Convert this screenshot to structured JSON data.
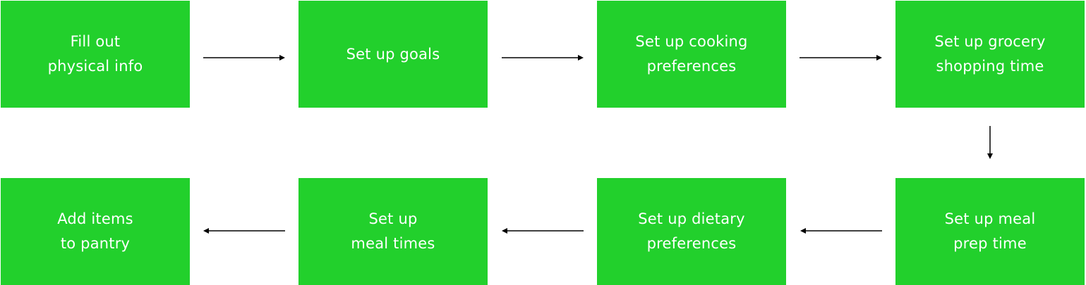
{
  "flow": {
    "steps": [
      {
        "label": "Fill out\nphysical info"
      },
      {
        "label": "Set up goals"
      },
      {
        "label": "Set up cooking\npreferences"
      },
      {
        "label": "Set up grocery\nshopping time"
      },
      {
        "label": "Set up meal\nprep time"
      },
      {
        "label": "Set up dietary\npreferences"
      },
      {
        "label": "Set up\nmeal times"
      },
      {
        "label": "Add items\nto pantry"
      }
    ]
  },
  "colors": {
    "box_fill": "#22d02c",
    "box_text": "#ffffff",
    "arrow": "#000000"
  }
}
